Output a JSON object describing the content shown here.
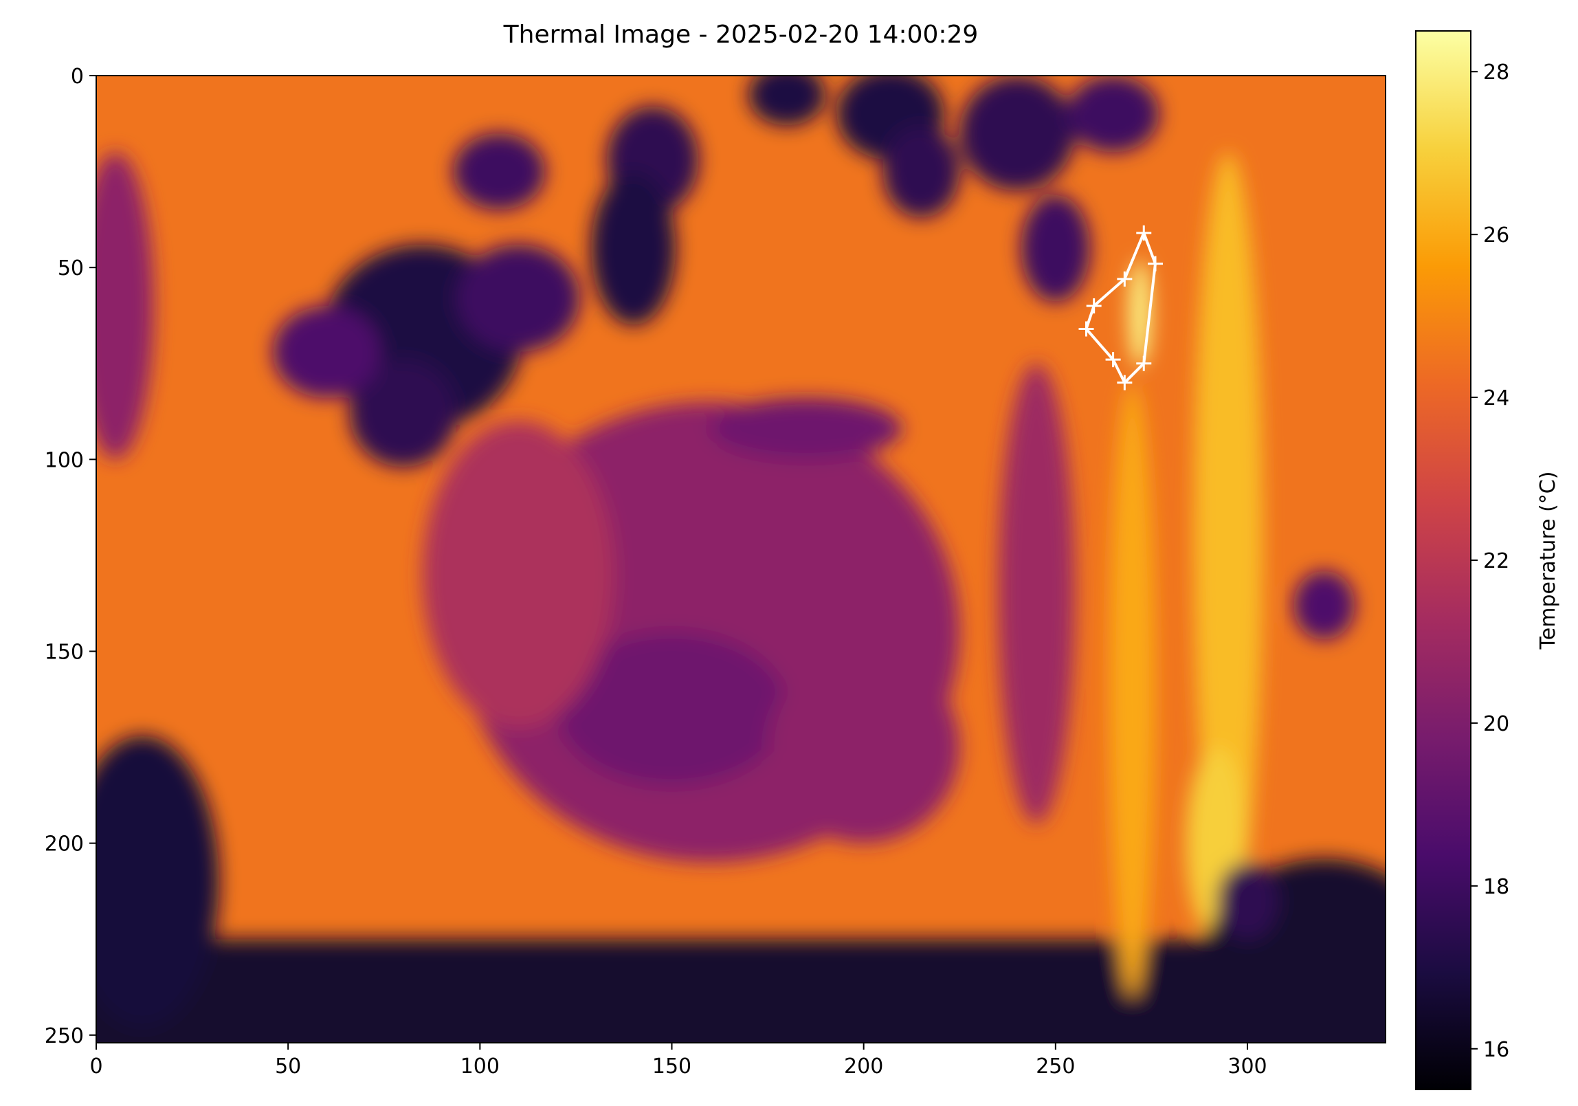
{
  "chart_data": {
    "type": "heatmap",
    "title": "Thermal Image - 2025-02-20 14:00:29",
    "xlabel": "",
    "ylabel": "",
    "xlim": [
      0,
      336
    ],
    "ylim": [
      252,
      0
    ],
    "xticks": [
      0,
      50,
      100,
      150,
      200,
      250,
      300
    ],
    "yticks": [
      0,
      50,
      100,
      150,
      200,
      250
    ],
    "grid": false,
    "colormap": "inferno",
    "colorbar": {
      "label": "Temperature (°C)",
      "range": [
        15.5,
        28.5
      ],
      "ticks": [
        16,
        18,
        20,
        22,
        24,
        26,
        28
      ]
    },
    "background_temp": 24.5,
    "regions": [
      {
        "desc": "cool band left edge",
        "x": 5,
        "y": 60,
        "rx": 10,
        "ry": 40,
        "temp": 20.5
      },
      {
        "desc": "cool patches top",
        "x": 180,
        "y": 5,
        "rx": 10,
        "ry": 8,
        "temp": 17.0
      },
      {
        "desc": "cool patches top",
        "x": 207,
        "y": 10,
        "rx": 14,
        "ry": 12,
        "temp": 17.0
      },
      {
        "desc": "cool patches top",
        "x": 215,
        "y": 25,
        "rx": 10,
        "ry": 12,
        "temp": 17.5
      },
      {
        "desc": "cool patches top",
        "x": 240,
        "y": 15,
        "rx": 15,
        "ry": 15,
        "temp": 17.5
      },
      {
        "desc": "cool patches top",
        "x": 265,
        "y": 10,
        "rx": 12,
        "ry": 10,
        "temp": 18.0
      },
      {
        "desc": "cool patches top",
        "x": 145,
        "y": 22,
        "rx": 12,
        "ry": 14,
        "temp": 17.5
      },
      {
        "desc": "cool patch",
        "x": 140,
        "y": 45,
        "rx": 11,
        "ry": 20,
        "temp": 17.0
      },
      {
        "desc": "cool patch",
        "x": 250,
        "y": 45,
        "rx": 9,
        "ry": 14,
        "temp": 18.0
      },
      {
        "desc": "cool patch",
        "x": 105,
        "y": 25,
        "rx": 12,
        "ry": 10,
        "temp": 18.0
      },
      {
        "desc": "cool cluster",
        "x": 85,
        "y": 68,
        "rx": 26,
        "ry": 24,
        "temp": 17.0
      },
      {
        "desc": "cool cluster",
        "x": 80,
        "y": 88,
        "rx": 14,
        "ry": 14,
        "temp": 17.5
      },
      {
        "desc": "cool cluster",
        "x": 60,
        "y": 72,
        "rx": 14,
        "ry": 12,
        "temp": 18.5
      },
      {
        "desc": "cool cluster",
        "x": 110,
        "y": 58,
        "rx": 16,
        "ry": 14,
        "temp": 18.0
      },
      {
        "desc": "wall body",
        "x": 160,
        "y": 145,
        "rx": 65,
        "ry": 60,
        "temp": 20.5
      },
      {
        "desc": "wall body",
        "x": 150,
        "y": 165,
        "rx": 30,
        "ry": 20,
        "temp": 19.5
      },
      {
        "desc": "wall body",
        "x": 200,
        "y": 175,
        "rx": 25,
        "ry": 25,
        "temp": 20.5
      },
      {
        "desc": "wall body",
        "x": 110,
        "y": 130,
        "rx": 25,
        "ry": 40,
        "temp": 21.5
      },
      {
        "desc": "wall edge",
        "x": 185,
        "y": 92,
        "rx": 25,
        "ry": 8,
        "temp": 19.5
      },
      {
        "desc": "wall edge",
        "x": 245,
        "y": 135,
        "rx": 10,
        "ry": 60,
        "temp": 21.0
      },
      {
        "desc": "warm stripe",
        "x": 270,
        "y": 160,
        "rx": 6,
        "ry": 80,
        "temp": 26.0
      },
      {
        "desc": "warm stripe",
        "x": 295,
        "y": 120,
        "rx": 9,
        "ry": 100,
        "temp": 26.5
      },
      {
        "desc": "warm stripe",
        "x": 292,
        "y": 200,
        "rx": 8,
        "ry": 25,
        "temp": 27.0
      },
      {
        "desc": "hot spot",
        "x": 272,
        "y": 62,
        "rx": 3,
        "ry": 14,
        "temp": 28.0
      },
      {
        "desc": "cool spot right",
        "x": 320,
        "y": 138,
        "rx": 8,
        "ry": 9,
        "temp": 18.5
      },
      {
        "desc": "cool block bottom left",
        "x": 12,
        "y": 210,
        "rx": 20,
        "ry": 38,
        "temp": 16.8
      },
      {
        "desc": "cool block bottom right",
        "x": 320,
        "y": 232,
        "rx": 32,
        "ry": 28,
        "temp": 16.5
      },
      {
        "desc": "cool patch",
        "x": 300,
        "y": 215,
        "rx": 8,
        "ry": 10,
        "temp": 17.5
      }
    ],
    "bottom_cool_band": {
      "y_top": 225,
      "temp": 16.5
    },
    "polygon": {
      "color": "#ffffff",
      "points": [
        [
          273,
          41
        ],
        [
          276,
          49
        ],
        [
          273,
          75
        ],
        [
          268,
          80
        ],
        [
          265,
          74
        ],
        [
          258,
          66
        ],
        [
          260,
          60
        ],
        [
          268,
          53
        ]
      ]
    }
  }
}
